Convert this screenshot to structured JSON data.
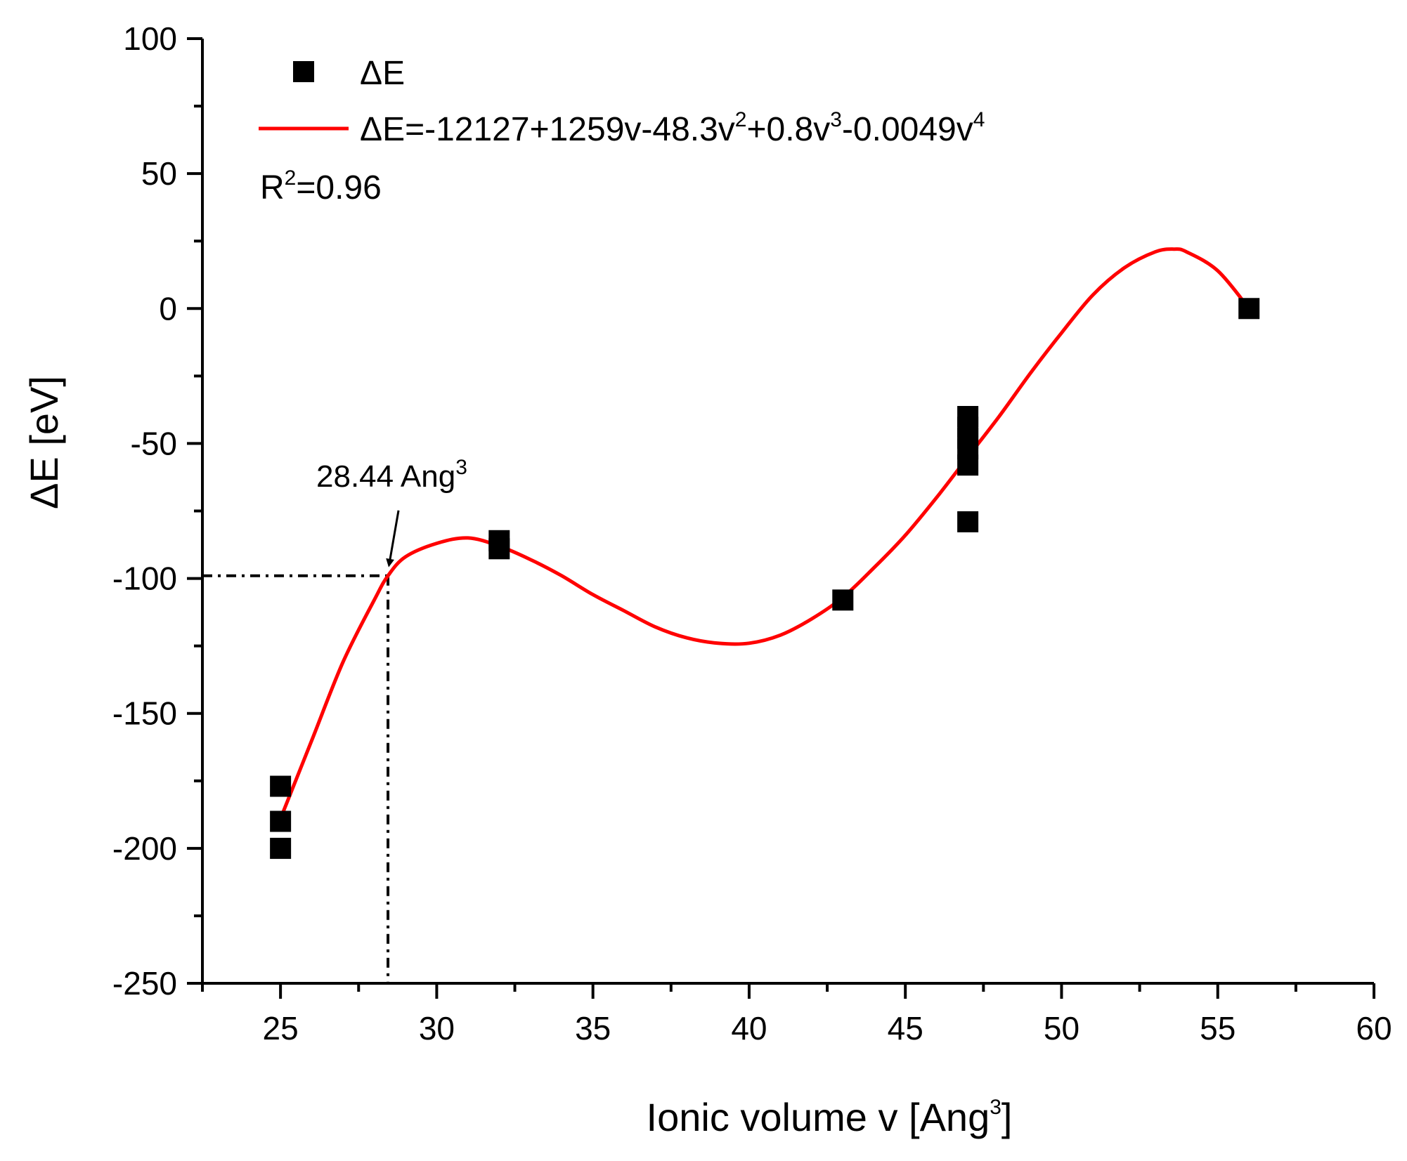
{
  "chart_data": {
    "type": "scatter",
    "xlabel": "Ionic volume v [Ang",
    "xlabel_sup": "3",
    "xlabel_end": "]",
    "ylabel": "ΔE [eV]",
    "xlim": [
      22.5,
      60
    ],
    "ylim": [
      -250,
      100
    ],
    "x_ticks": [
      25,
      30,
      35,
      40,
      45,
      50,
      55,
      60
    ],
    "y_ticks": [
      100,
      50,
      0,
      -50,
      -100,
      -150,
      -200,
      -250
    ],
    "x_minor_step": 2.5,
    "y_minor_step": 25,
    "grid": false,
    "legend_position": "top-left",
    "series": [
      {
        "name": "ΔE",
        "kind": "scatter",
        "marker": "square",
        "color": "#000000",
        "points": [
          {
            "x": 25,
            "y": -177
          },
          {
            "x": 25,
            "y": -190
          },
          {
            "x": 25,
            "y": -200
          },
          {
            "x": 32,
            "y": -86
          },
          {
            "x": 32,
            "y": -89
          },
          {
            "x": 43,
            "y": -108
          },
          {
            "x": 47,
            "y": -40
          },
          {
            "x": 47,
            "y": -44
          },
          {
            "x": 47,
            "y": -48
          },
          {
            "x": 47,
            "y": -52
          },
          {
            "x": 47,
            "y": -58
          },
          {
            "x": 47,
            "y": -79
          },
          {
            "x": 56,
            "y": 0
          }
        ]
      },
      {
        "name": "ΔE=-12127+1259v-48.3v²+0.8v³-0.0049v⁴",
        "kind": "line",
        "color": "#ff0000",
        "points": [
          {
            "x": 25,
            "y": -189
          },
          {
            "x": 26,
            "y": -160
          },
          {
            "x": 27,
            "y": -131
          },
          {
            "x": 28,
            "y": -108
          },
          {
            "x": 28.44,
            "y": -99
          },
          {
            "x": 29,
            "y": -92
          },
          {
            "x": 30,
            "y": -87
          },
          {
            "x": 31,
            "y": -85
          },
          {
            "x": 32,
            "y": -88
          },
          {
            "x": 33,
            "y": -93
          },
          {
            "x": 34,
            "y": -99
          },
          {
            "x": 35,
            "y": -106
          },
          {
            "x": 36,
            "y": -112
          },
          {
            "x": 37,
            "y": -118
          },
          {
            "x": 38,
            "y": -122
          },
          {
            "x": 39,
            "y": -124
          },
          {
            "x": 40,
            "y": -124
          },
          {
            "x": 41,
            "y": -121
          },
          {
            "x": 42,
            "y": -115
          },
          {
            "x": 43,
            "y": -107
          },
          {
            "x": 44,
            "y": -96
          },
          {
            "x": 45,
            "y": -84
          },
          {
            "x": 46,
            "y": -70
          },
          {
            "x": 47,
            "y": -55
          },
          {
            "x": 48,
            "y": -40
          },
          {
            "x": 49,
            "y": -24
          },
          {
            "x": 50,
            "y": -9
          },
          {
            "x": 51,
            "y": 5
          },
          {
            "x": 52,
            "y": 15
          },
          {
            "x": 53,
            "y": 21
          },
          {
            "x": 53.6,
            "y": 22
          },
          {
            "x": 54,
            "y": 21
          },
          {
            "x": 55,
            "y": 14
          },
          {
            "x": 56,
            "y": 0
          }
        ]
      }
    ],
    "legend": [
      {
        "label": "ΔE",
        "marker": "square",
        "color": "#000000"
      },
      {
        "label_parts": [
          {
            "t": "ΔE=-12127+1259v-48.3v"
          },
          {
            "t": "2",
            "sup": true
          },
          {
            "t": "+0.8v"
          },
          {
            "t": "3",
            "sup": true
          },
          {
            "t": "-0.0049v"
          },
          {
            "t": "4",
            "sup": true
          }
        ],
        "marker": "line",
        "color": "#ff0000"
      }
    ],
    "r_squared": {
      "base": "R",
      "sup": "2",
      "value": "=0.96"
    },
    "annotation": {
      "text": "28.44 Ang",
      "sup": "3",
      "x": 28.44,
      "y": -99,
      "style": "dash-dot guide lines to both axes with arrow"
    }
  }
}
